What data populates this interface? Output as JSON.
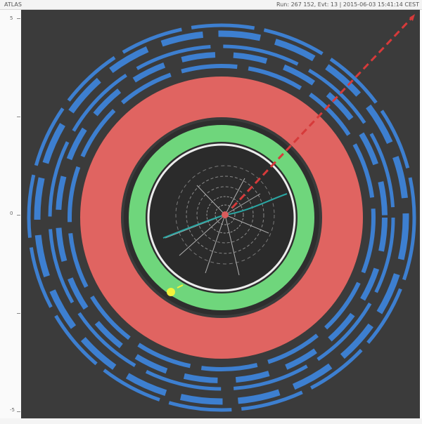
{
  "header": {
    "left_text": "ATLAS",
    "right_text": "Run: 267 152, Evt: 13 | 2015-06-03 15:41:14 CEST"
  },
  "side_ruler": {
    "labels": [
      "5",
      "0",
      "-5"
    ]
  },
  "colors": {
    "background": "#3b3b3b",
    "muon_chambers": "#3d7fd0",
    "hadronic_calorimeter": "#e06461",
    "em_calorimeter": "#6fd67c",
    "solenoid": "#ececec",
    "tracks": "#b0b0b0",
    "track_highlight": "#2aa6a3",
    "electron_deposit": "#f2f23a",
    "missing_energy": "#d63a3a"
  },
  "icons": {
    "missing_energy_arrow": "missing-et-arrow-icon"
  }
}
